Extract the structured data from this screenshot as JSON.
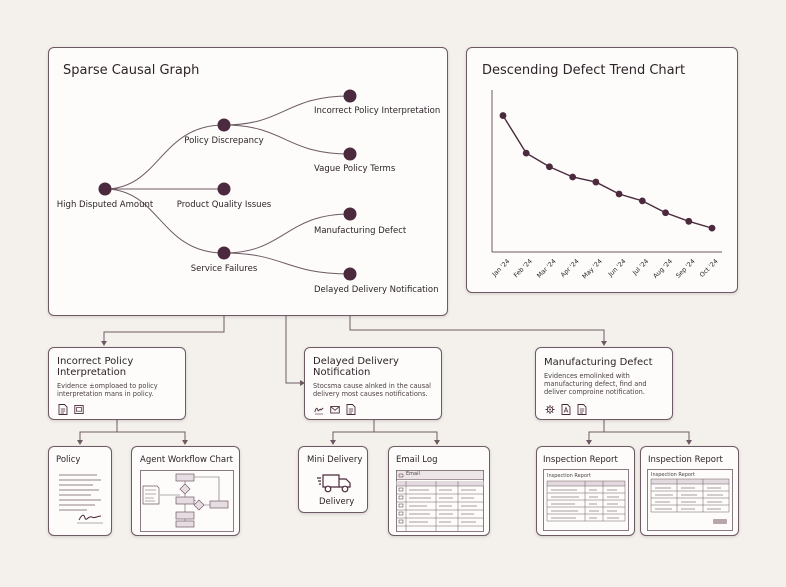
{
  "causal_graph": {
    "title": "Sparse Causal Graph",
    "nodes": {
      "root": "High Disputed Amount",
      "policy": "Policy Discrepancy",
      "product": "Product Quality Issues",
      "service": "Service Failures",
      "incorrect": "Incorrect Policy Interpretation",
      "vague": "Vague Policy Terms",
      "manufacturing": "Manufacturing Defect",
      "delayed": "Delayed Delivery Notification"
    }
  },
  "trend_chart": {
    "title": "Descending Defect Trend Chart"
  },
  "chart_data": {
    "type": "line",
    "title": "Descending Defect Trend Chart",
    "x": [
      "Jan '24",
      "Feb '24",
      "Mar '24",
      "Apr '24",
      "May '24",
      "Jun '24",
      "Jul '24",
      "Aug '24",
      "Sep '24",
      "Oct '24"
    ],
    "series": [
      {
        "values": [
          100,
          78,
          70,
          64,
          61,
          54,
          50,
          43,
          38,
          34
        ]
      }
    ],
    "xlabel": "",
    "ylabel": "",
    "ylim": [
      20,
      115
    ],
    "grid": false,
    "color": "#4a2a3c"
  },
  "details": {
    "incorrect": {
      "title": "Incorrect Policy Interpretation",
      "text": "Evidence ±omploaed to policy interpretation mans in policy.",
      "icons": [
        "document-icon",
        "image-icon"
      ]
    },
    "delayed": {
      "title": "Delayed Delivery Notification",
      "text": "Stocsma cause alnked in the causal delivery most causes notifications.",
      "icons": [
        "signature-icon",
        "mail-icon",
        "document-icon"
      ]
    },
    "manufacturing": {
      "title": "Manufacturing Defect",
      "text": "Evidences emolinked with manufacturing defect, find and deliver comproine notification.",
      "icons": [
        "gear-icon",
        "pdf-icon",
        "document-icon"
      ]
    }
  },
  "documents": {
    "policy": {
      "title": "Policy"
    },
    "workflow": {
      "title": "Agent Workflow Chart"
    },
    "mini_delivery": {
      "title": "Mini Delivery",
      "caption": "Delivery"
    },
    "email_log": {
      "title": "Email Log",
      "header": "Email"
    },
    "inspection1": {
      "title": "Inspection Report",
      "header": "Inspection Report"
    },
    "inspection2": {
      "title": "Inspection Report",
      "header": "Inspection Report"
    }
  },
  "colors": {
    "accent": "#4a2a3c",
    "edge": "#6e5a64",
    "background": "#f4f1ec",
    "card": "#fdfcfa"
  }
}
